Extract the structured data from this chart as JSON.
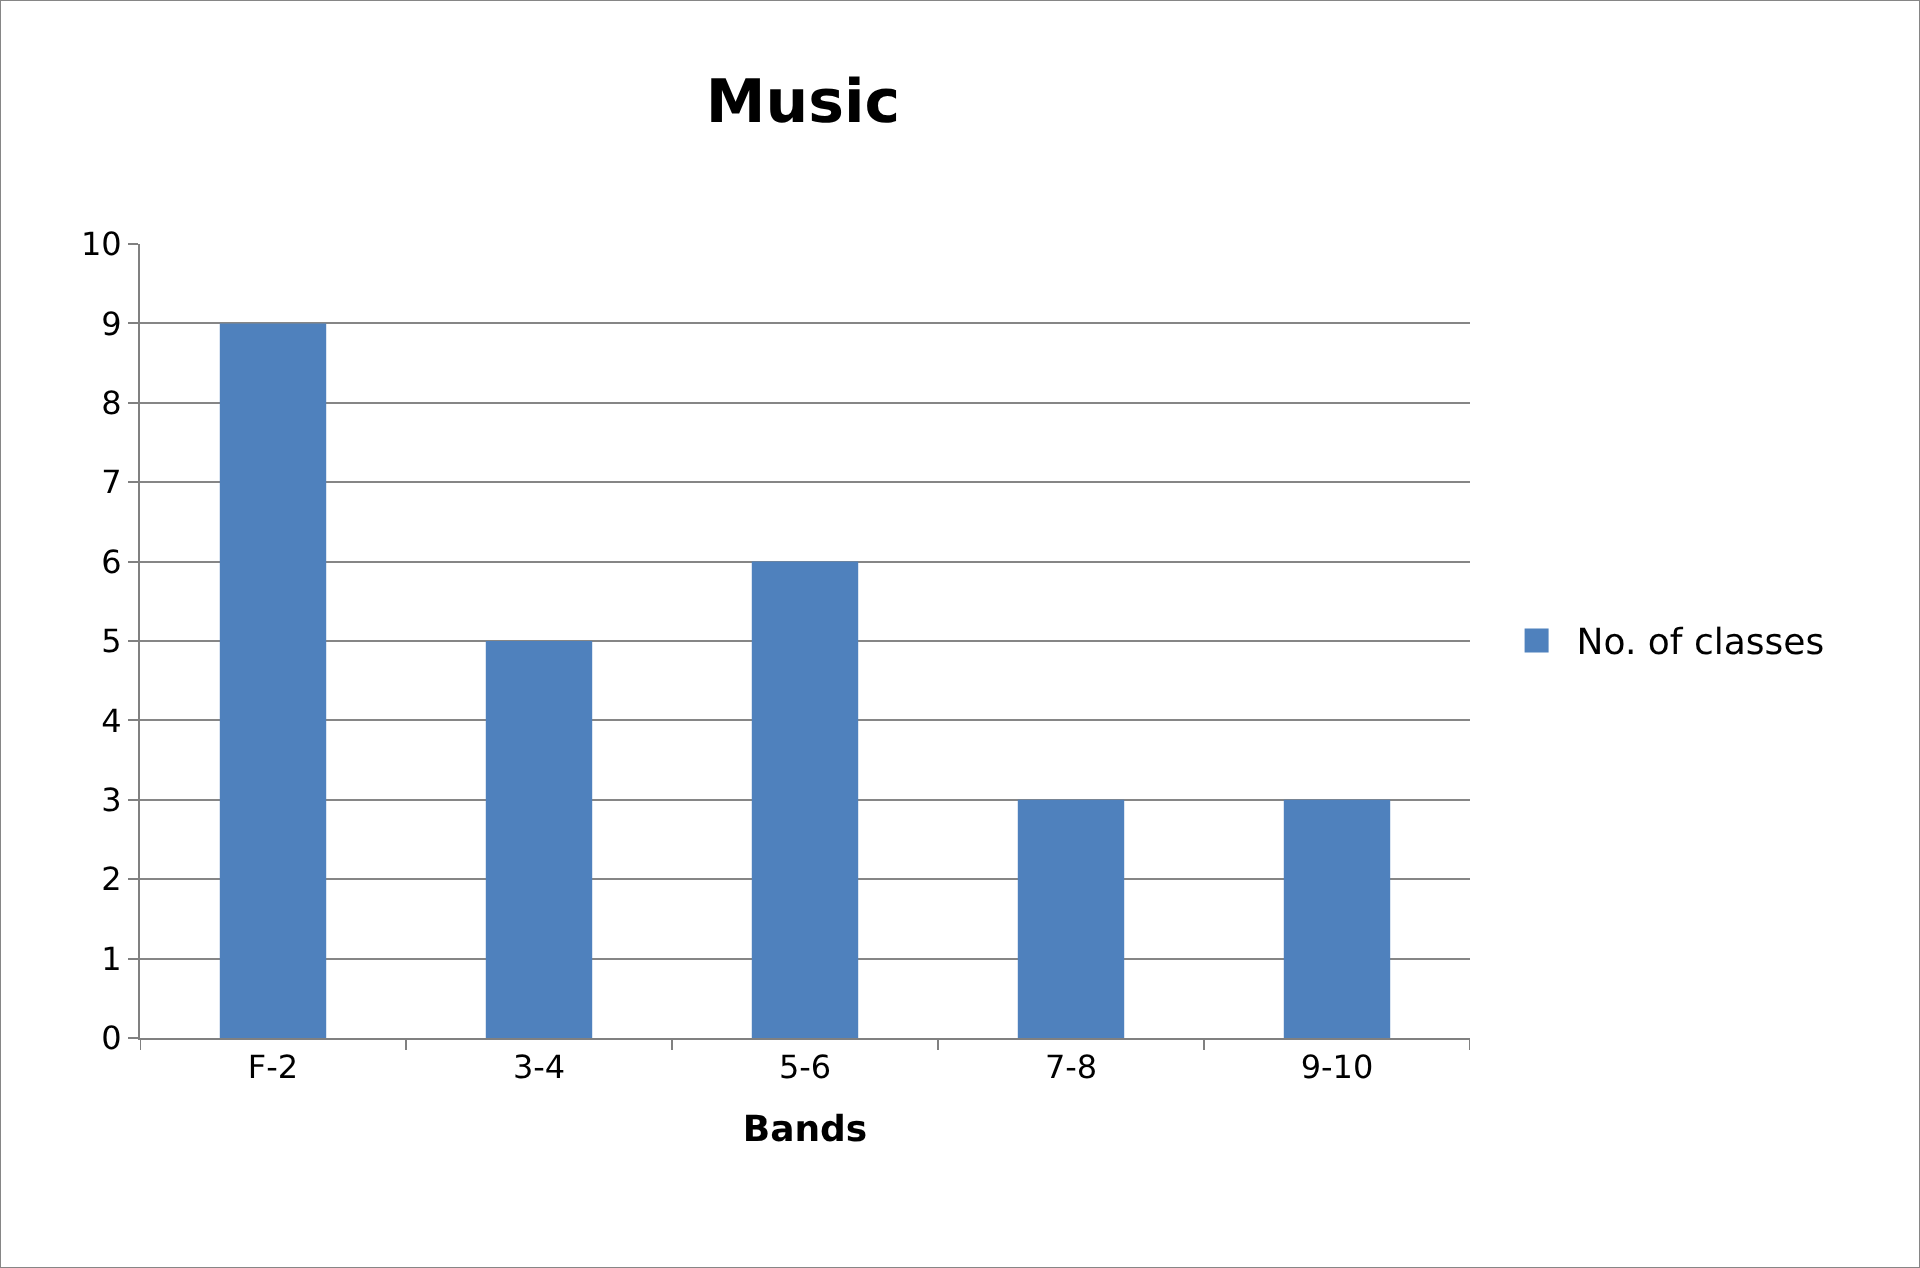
{
  "chart_data": {
    "type": "bar",
    "title": "Music",
    "xlabel": "Bands",
    "categories": [
      "F-2",
      "3-4",
      "5-6",
      "7-8",
      "9-10"
    ],
    "series": [
      {
        "name": "No. of classes",
        "color": "#4f81bd",
        "values": [
          9,
          5,
          6,
          3,
          3
        ]
      }
    ],
    "ylim": [
      0,
      10
    ],
    "yticks": [
      0,
      1,
      2,
      3,
      4,
      5,
      6,
      7,
      8,
      9,
      10
    ],
    "grid": "y",
    "legend": "right"
  }
}
